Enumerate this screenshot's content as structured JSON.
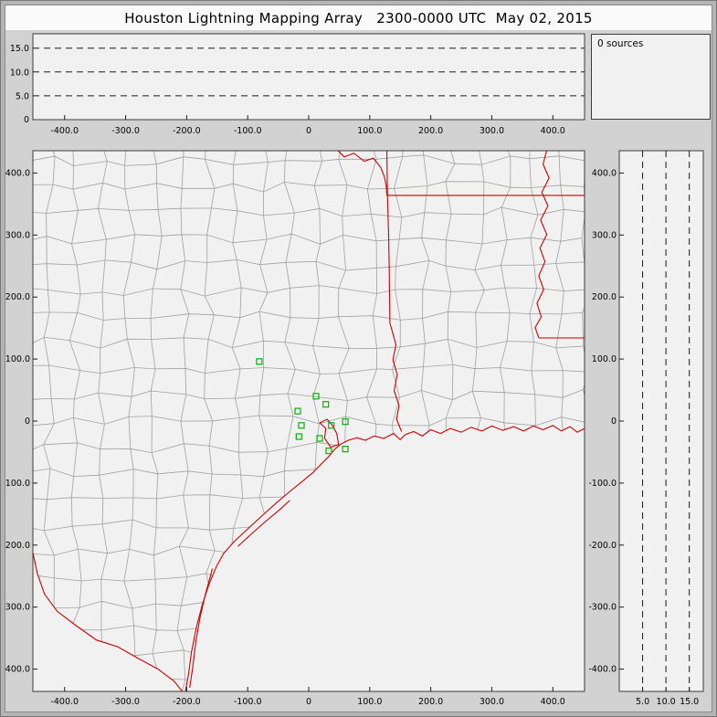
{
  "window": {
    "title": "Houston Lightning Mapping Array   2300-0000 UTC  May 02, 2015"
  },
  "sources_panel": {
    "label": "0 sources"
  },
  "colors": {
    "window_bg": "#d2d2d2",
    "panel_bg": "#f1f1f1",
    "frame": "#3c3c3c",
    "grid_line": "#1a1a1a",
    "county_line": "#a0a0a0",
    "border_red": "#cc0000",
    "station_green": "#00b400",
    "text": "#000000"
  },
  "chart_data": [
    {
      "id": "altitude-vs-eastwest",
      "type": "scatter",
      "points": [],
      "xlim": [
        -452,
        452
      ],
      "ylim": [
        0,
        18
      ],
      "grid": "dashed-horizontal",
      "x_ticks": [
        {
          "v": -400,
          "label": "-400.0"
        },
        {
          "v": -300,
          "label": "-300.0"
        },
        {
          "v": -200,
          "label": "-200.0"
        },
        {
          "v": -100,
          "label": "-100.0"
        },
        {
          "v": 0,
          "label": "0"
        },
        {
          "v": 100,
          "label": "100.0"
        },
        {
          "v": 200,
          "label": "200.0"
        },
        {
          "v": 300,
          "label": "300.0"
        },
        {
          "v": 400,
          "label": "400.0"
        }
      ],
      "y_ticks": [
        {
          "v": 5,
          "label": "5.0"
        },
        {
          "v": 10,
          "label": "10.0"
        },
        {
          "v": 15,
          "label": "15.0"
        }
      ],
      "y_base_label": "0"
    },
    {
      "id": "plan-view-map",
      "type": "scatter",
      "points": [],
      "xlim": [
        -452,
        452
      ],
      "ylim": [
        -436,
        436
      ],
      "x_ticks": [
        {
          "v": -400,
          "label": "-400.0"
        },
        {
          "v": -300,
          "label": "-300.0"
        },
        {
          "v": -200,
          "label": "-200.0"
        },
        {
          "v": -100,
          "label": "-100.0"
        },
        {
          "v": 0,
          "label": "0"
        },
        {
          "v": 100,
          "label": "100.0"
        },
        {
          "v": 200,
          "label": "200.0"
        },
        {
          "v": 300,
          "label": "300.0"
        },
        {
          "v": 400,
          "label": "400.0"
        }
      ],
      "y_ticks": [
        {
          "v": 400,
          "label": "400.0"
        },
        {
          "v": 300,
          "label": "300.0"
        },
        {
          "v": 200,
          "label": "200.0"
        },
        {
          "v": 100,
          "label": "100.0"
        },
        {
          "v": 0,
          "label": "0"
        },
        {
          "v": -100,
          "label": "-100.0"
        },
        {
          "v": -200,
          "label": "-200.0"
        },
        {
          "v": -300,
          "label": "-300.0"
        },
        {
          "v": -400,
          "label": "-400.0"
        }
      ],
      "stations": [
        [
          -81,
          96
        ],
        [
          12,
          40
        ],
        [
          28,
          27
        ],
        [
          -18,
          16
        ],
        [
          -12,
          -7
        ],
        [
          37,
          -7
        ],
        [
          60,
          -1
        ],
        [
          -16,
          -25
        ],
        [
          18,
          -28
        ],
        [
          33,
          -48
        ],
        [
          60,
          -45
        ]
      ],
      "map": {
        "coast": [
          [
            -203,
            -441
          ],
          [
            -197,
            -408
          ],
          [
            -192,
            -372
          ],
          [
            -184,
            -332
          ],
          [
            -174,
            -295
          ],
          [
            -163,
            -262
          ],
          [
            -151,
            -234
          ],
          [
            -139,
            -213
          ],
          [
            -122,
            -194
          ],
          [
            -100,
            -174
          ],
          [
            -77,
            -153
          ],
          [
            -53,
            -132
          ],
          [
            -29,
            -112
          ],
          [
            -9,
            -96
          ],
          [
            7,
            -83
          ],
          [
            21,
            -69
          ],
          [
            33,
            -57
          ],
          [
            43,
            -45
          ],
          [
            53,
            -37
          ],
          [
            65,
            -31
          ],
          [
            79,
            -27
          ],
          [
            93,
            -31
          ],
          [
            107,
            -24
          ],
          [
            123,
            -28
          ],
          [
            139,
            -20
          ],
          [
            150,
            -30
          ],
          [
            158,
            -22
          ],
          [
            172,
            -17
          ],
          [
            186,
            -24
          ],
          [
            200,
            -14
          ],
          [
            216,
            -20
          ],
          [
            232,
            -12
          ],
          [
            250,
            -18
          ],
          [
            266,
            -10
          ],
          [
            284,
            -16
          ],
          [
            300,
            -8
          ],
          [
            318,
            -15
          ],
          [
            336,
            -9
          ],
          [
            352,
            -16
          ],
          [
            368,
            -8
          ],
          [
            384,
            -14
          ],
          [
            400,
            -7
          ],
          [
            414,
            -16
          ],
          [
            428,
            -9
          ],
          [
            440,
            -18
          ],
          [
            452,
            -12
          ]
        ],
        "rio_grande": [
          [
            -203,
            -441
          ],
          [
            -221,
            -419
          ],
          [
            -247,
            -400
          ],
          [
            -279,
            -383
          ],
          [
            -313,
            -364
          ],
          [
            -348,
            -353
          ],
          [
            -381,
            -330
          ],
          [
            -412,
            -307
          ],
          [
            -433,
            -279
          ],
          [
            -445,
            -245
          ],
          [
            -452,
            -212
          ]
        ],
        "tx_east_border": [
          [
            128,
            440
          ],
          [
            129,
            364
          ],
          [
            131,
            300
          ],
          [
            132,
            240
          ],
          [
            133,
            158
          ],
          [
            138,
            141
          ],
          [
            143,
            123
          ],
          [
            138,
            99
          ],
          [
            145,
            75
          ],
          [
            140,
            49
          ],
          [
            148,
            25
          ],
          [
            144,
            3
          ],
          [
            152,
            -17
          ]
        ],
        "red_river": [
          [
            44,
            440
          ],
          [
            58,
            426
          ],
          [
            74,
            432
          ],
          [
            91,
            419
          ],
          [
            106,
            424
          ],
          [
            118,
            409
          ],
          [
            124,
            394
          ],
          [
            127,
            379
          ],
          [
            128,
            364
          ]
        ],
        "ar_la_border": [
          [
            128,
            364
          ],
          [
            456,
            364
          ]
        ],
        "mississippi_river": [
          [
            391,
            440
          ],
          [
            384,
            414
          ],
          [
            394,
            392
          ],
          [
            382,
            369
          ],
          [
            392,
            347
          ],
          [
            380,
            324
          ],
          [
            390,
            301
          ],
          [
            379,
            279
          ],
          [
            387,
            257
          ],
          [
            377,
            234
          ],
          [
            385,
            212
          ],
          [
            374,
            190
          ],
          [
            381,
            168
          ],
          [
            371,
            151
          ],
          [
            377,
            134
          ]
        ],
        "ms_la_border": [
          [
            377,
            134
          ],
          [
            456,
            134
          ]
        ],
        "barrier_island": [
          [
            -195,
            -430
          ],
          [
            -190,
            -396
          ],
          [
            -185,
            -356
          ],
          [
            -178,
            -316
          ],
          [
            -169,
            -278
          ],
          [
            -161,
            -250
          ],
          [
            -158,
            -238
          ]
        ],
        "matagorda_island": [
          [
            -116,
            -202
          ],
          [
            -94,
            -182
          ],
          [
            -71,
            -162
          ],
          [
            -49,
            -144
          ],
          [
            -31,
            -128
          ]
        ],
        "galveston_bay": [
          [
            18,
            -3
          ],
          [
            28,
            -12
          ],
          [
            26,
            -28
          ],
          [
            36,
            -42
          ],
          [
            49,
            -38
          ],
          [
            46,
            -20
          ],
          [
            38,
            -6
          ],
          [
            30,
            3
          ],
          [
            18,
            -3
          ]
        ]
      }
    },
    {
      "id": "altitude-vs-northsouth",
      "type": "scatter",
      "points": [],
      "xlim": [
        0,
        18
      ],
      "ylim": [
        -436,
        436
      ],
      "grid": "dashed-vertical",
      "x_ticks": [
        {
          "v": 5,
          "label": "5.0"
        },
        {
          "v": 10,
          "label": "10.0"
        },
        {
          "v": 15,
          "label": "15.0"
        }
      ],
      "y_ticks": [
        {
          "v": 400,
          "label": "400.0"
        },
        {
          "v": 300,
          "label": "300.0"
        },
        {
          "v": 200,
          "label": "200.0"
        },
        {
          "v": 100,
          "label": "100.0"
        },
        {
          "v": 0,
          "label": "0"
        },
        {
          "v": -100,
          "label": "-100.0"
        },
        {
          "v": -200,
          "label": "-200.0"
        },
        {
          "v": -300,
          "label": "-300.0"
        },
        {
          "v": -400,
          "label": "-400.0"
        }
      ]
    }
  ]
}
